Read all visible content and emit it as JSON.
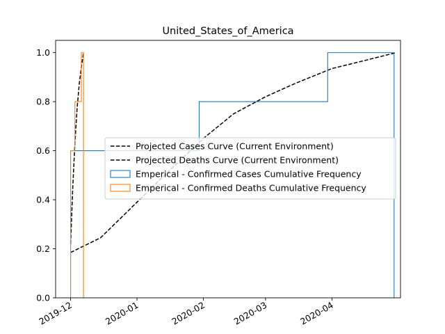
{
  "chart_data": {
    "type": "line",
    "title": "United_States_of_America",
    "xlabel": "",
    "ylabel": "",
    "xlim": [
      "2019-11-24",
      "2020-05-03"
    ],
    "ylim": [
      0.0,
      1.05
    ],
    "x_ticks": [
      "2019-12-01",
      "2020-01-01",
      "2020-02-01",
      "2020-03-01",
      "2020-04-01"
    ],
    "x_tick_labels": [
      "2019-12",
      "2020-01",
      "2020-02",
      "2020-03",
      "2020-04"
    ],
    "y_ticks": [
      0.0,
      0.2,
      0.4,
      0.6,
      0.8,
      1.0
    ],
    "y_tick_labels": [
      "0.0",
      "0.2",
      "0.4",
      "0.6",
      "0.8",
      "1.0"
    ],
    "legend_position": "center-right",
    "grid": false,
    "series": [
      {
        "name": "Projected Cases Curve (Current Environment)",
        "kind": "dashed-line",
        "color": "#000000",
        "points": [
          [
            "2019-12-01",
            0.185
          ],
          [
            "2019-12-15",
            0.245
          ],
          [
            "2020-01-01",
            0.39
          ],
          [
            "2020-01-15",
            0.51
          ],
          [
            "2020-02-01",
            0.65
          ],
          [
            "2020-02-15",
            0.75
          ],
          [
            "2020-03-01",
            0.82
          ],
          [
            "2020-03-15",
            0.875
          ],
          [
            "2020-04-01",
            0.935
          ],
          [
            "2020-04-15",
            0.965
          ],
          [
            "2020-05-01",
            1.0
          ]
        ]
      },
      {
        "name": "Projected Deaths Curve (Current Environment)",
        "kind": "dashed-line",
        "color": "#000000",
        "points": [
          [
            "2019-12-01",
            0.22
          ],
          [
            "2019-12-02",
            0.45
          ],
          [
            "2019-12-03",
            0.63
          ],
          [
            "2019-12-04",
            0.77
          ],
          [
            "2019-12-05",
            0.87
          ],
          [
            "2019-12-06",
            0.94
          ],
          [
            "2019-12-07",
            1.0
          ]
        ]
      },
      {
        "name": "Emperical - Confirmed Cases Cumulative Frequency",
        "kind": "step",
        "color": "#1f77b4",
        "steps": [
          [
            "2019-12-01",
            0.6
          ],
          [
            "2020-01-30",
            0.8
          ],
          [
            "2020-03-30",
            1.0
          ]
        ],
        "end": "2020-04-30"
      },
      {
        "name": "Emperical - Confirmed Deaths Cumulative Frequency",
        "kind": "step",
        "color": "#ff7f0e",
        "steps": [
          [
            "2019-12-01",
            0.6
          ],
          [
            "2019-12-03",
            0.8
          ],
          [
            "2019-12-06",
            1.0
          ]
        ],
        "end": "2019-12-07"
      }
    ]
  }
}
